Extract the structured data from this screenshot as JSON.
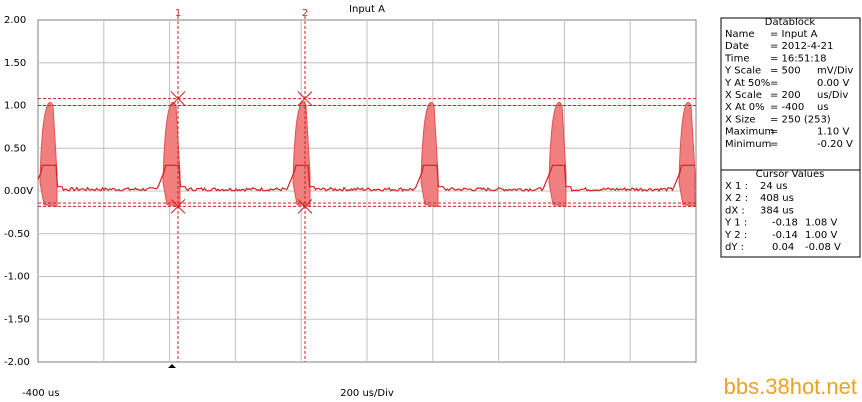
{
  "plot": {
    "title": "Input A",
    "y_labels": [
      "2.00",
      "1.50",
      "1.00",
      "0.50",
      "0.00V",
      "-0.50",
      "-1.00",
      "-1.50",
      "-2.00"
    ],
    "x_start_label": "-400 us",
    "x_scale_label": "200 us/Div",
    "cursor_labels": [
      "1",
      "2"
    ]
  },
  "datablock": {
    "title": "Datablock",
    "rows": [
      [
        "Name",
        "= Input A"
      ],
      [
        "Date",
        "= 2012-4-21"
      ],
      [
        "Time",
        "= 16:51:18"
      ],
      [
        "Y Scale",
        "= 500",
        "mV/Div"
      ],
      [
        "Y At 50%",
        "=",
        "0.00 V"
      ],
      [
        "X Scale",
        "= 200",
        "us/Div"
      ],
      [
        "X At 0%",
        "= -400",
        "us"
      ],
      [
        "X Size",
        "= 250 (253)"
      ],
      [
        "Maximum",
        "=",
        "1.10 V"
      ],
      [
        "Minimum",
        "=",
        "-0.20 V"
      ]
    ]
  },
  "cursor_values": {
    "title": "Cursor Values",
    "rows": [
      [
        "X 1 :",
        "24 us"
      ],
      [
        "X 2 :",
        "408 us"
      ],
      [
        "dX :",
        "384 us"
      ],
      [
        "Y 1 :",
        "-0.18",
        "1.08 V"
      ],
      [
        "Y 2 :",
        "-0.14",
        "1.00 V"
      ],
      [
        "dY :",
        "0.04",
        "-0.08 V"
      ]
    ]
  },
  "watermark": "bbs.38hot.net"
}
